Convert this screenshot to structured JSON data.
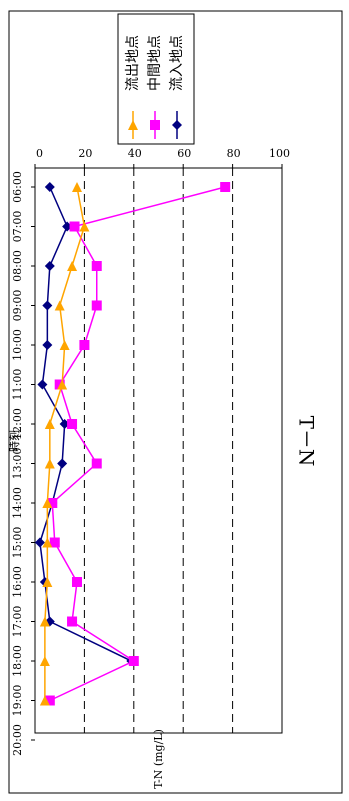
{
  "chart_data": {
    "type": "line",
    "title": "T－N",
    "xlabel": "時刻",
    "ylabel": "T-N (mg/L)",
    "categories": [
      "06:00",
      "07:00",
      "08:00",
      "09:00",
      "10:00",
      "11:00",
      "12:00",
      "13:00",
      "14:00",
      "15:00",
      "16:00",
      "17:00",
      "18:00",
      "19:00",
      "20:00"
    ],
    "ylim": [
      0,
      100
    ],
    "yticks": [
      0,
      20,
      40,
      60,
      80,
      100
    ],
    "grid": "dashed at 20, 40, 60, 80",
    "legend_position": "top-right",
    "series": [
      {
        "name": "流入地点",
        "color": "#000080",
        "marker": "diamond",
        "values": [
          6,
          13,
          6,
          5,
          5,
          3,
          12,
          11,
          7,
          2,
          4,
          6,
          39,
          null,
          null
        ]
      },
      {
        "name": "中間地点",
        "color": "#ff00ff",
        "marker": "square",
        "values": [
          77,
          16,
          25,
          25,
          20,
          10,
          15,
          25,
          7,
          8,
          17,
          15,
          40,
          6,
          null
        ]
      },
      {
        "name": "流出地点",
        "color": "#ffa500",
        "marker": "triangle",
        "values": [
          17,
          20,
          15,
          10,
          12,
          11,
          6,
          6,
          5,
          5,
          5,
          4,
          4,
          4,
          null
        ]
      }
    ]
  }
}
